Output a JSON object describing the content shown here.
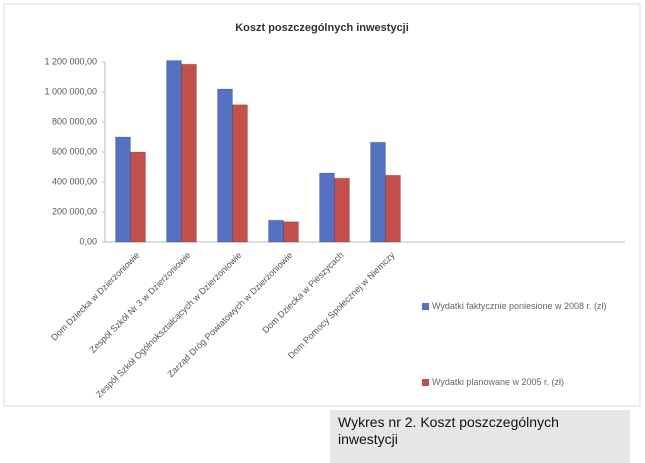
{
  "chart_data": {
    "type": "bar",
    "title": "Koszt poszczególnych inwestycji",
    "categories": [
      "Dom Dziecka w Dzierżoniowie",
      "Zespół Szkół Nr 3 w Dzierżoniowie",
      "Zespół Szkół Ogólnokształcących w Dzierżoniowie",
      "Zarząd Dróg Powiatowych w Dzierżoniowie",
      "Dom Dziecka w Pieszycach",
      "Dom Pomocy Społecznej w Niemczy"
    ],
    "series": [
      {
        "name": "Wydatki faktycznie poniesione w 2008 r. (zł)",
        "color": "#5572c2",
        "values": [
          700000,
          1210000,
          1020000,
          145000,
          460000,
          665000
        ]
      },
      {
        "name": "Wydatki planowane w 2005 r. (zł)",
        "color": "#c4504c",
        "values": [
          600000,
          1185000,
          915000,
          135000,
          425000,
          445000
        ]
      }
    ],
    "ylim": [
      0,
      1200000
    ],
    "yticks": [
      {
        "value": 0,
        "label": "0,00"
      },
      {
        "value": 200000,
        "label": "200 000,00"
      },
      {
        "value": 400000,
        "label": "400 000,00"
      },
      {
        "value": 600000,
        "label": "600 000,00"
      },
      {
        "value": 800000,
        "label": "800 000,00"
      },
      {
        "value": 1000000,
        "label": "1 000 000,00"
      },
      {
        "value": 1200000,
        "label": "1 200 000,00"
      }
    ],
    "grid": false,
    "legend": "right",
    "caption": "Wykres nr 2. Koszt poszczególnych inwestycji"
  }
}
